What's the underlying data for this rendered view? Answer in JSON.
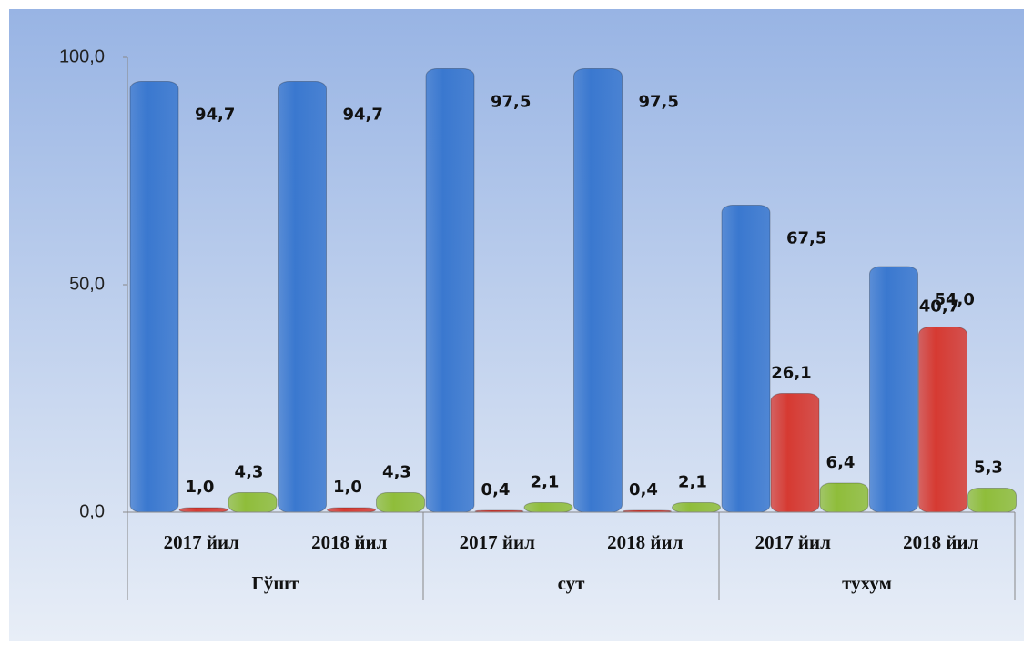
{
  "chart_data": {
    "type": "bar",
    "categories": [
      "2017 йил",
      "2018 йил",
      "2017 йил",
      "2018 йил",
      "2017 йил",
      "2018 йил"
    ],
    "groups": [
      "Гўшт",
      "сут",
      "тухум"
    ],
    "series": [
      {
        "color": "#3a78cf",
        "values": [
          94.7,
          94.7,
          97.5,
          97.5,
          67.5,
          54.0
        ],
        "value_labels": [
          "94,7",
          "94,7",
          "97,5",
          "97,5",
          "67,5",
          "54,0"
        ]
      },
      {
        "color": "#d63a32",
        "values": [
          1.0,
          1.0,
          0.4,
          0.4,
          26.1,
          40.7
        ],
        "value_labels": [
          "1,0",
          "1,0",
          "0,4",
          "0,4",
          "26,1",
          "40,7"
        ]
      },
      {
        "color": "#8fbd3a",
        "values": [
          4.3,
          4.3,
          2.1,
          2.1,
          6.4,
          5.3
        ],
        "value_labels": [
          "4,3",
          "4,3",
          "2,1",
          "2,1",
          "6,4",
          "5,3"
        ]
      }
    ],
    "ylim": [
      0,
      100
    ],
    "yticks": [
      {
        "value": 0,
        "label": "0,0"
      },
      {
        "value": 50,
        "label": "50,0"
      },
      {
        "value": 100,
        "label": "100,0"
      }
    ]
  }
}
